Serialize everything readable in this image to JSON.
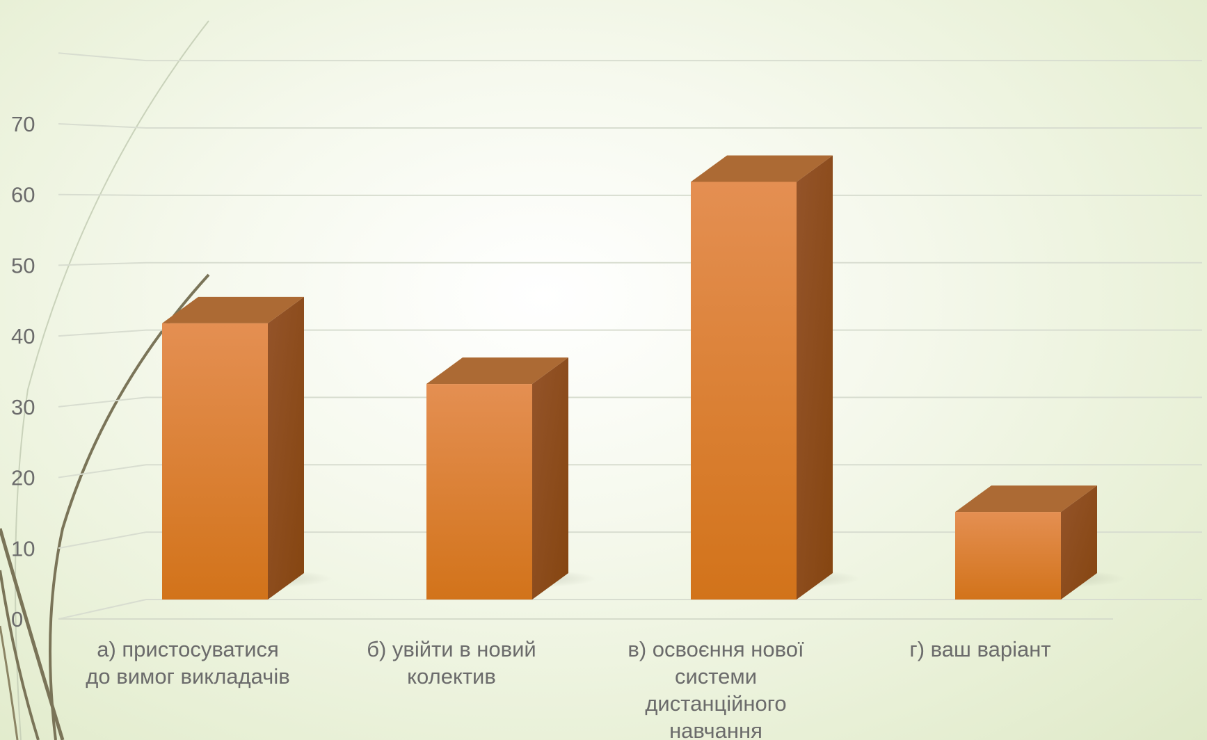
{
  "chart_data": {
    "type": "bar",
    "categories": [
      [
        "а) пристосуватися",
        "до вимог викладачів"
      ],
      [
        "б) увійти в новий",
        "колектив"
      ],
      [
        "в) освоєння нової",
        "системи",
        "дистанційного",
        "навчання"
      ],
      [
        "г) ваш варіант"
      ]
    ],
    "values": [
      41,
      32,
      62,
      13
    ],
    "ylim": [
      0,
      70
    ],
    "yticks": [
      0,
      10,
      20,
      30,
      40,
      50,
      60,
      70
    ],
    "grid": true,
    "style": "3d-column",
    "colors": {
      "front_top": "#e48f52",
      "front_bottom": "#d2731a",
      "side": "#8a4d17",
      "top": "#ac6a34",
      "grid": "#d8ddd0",
      "text": "#6b6b6b"
    }
  }
}
